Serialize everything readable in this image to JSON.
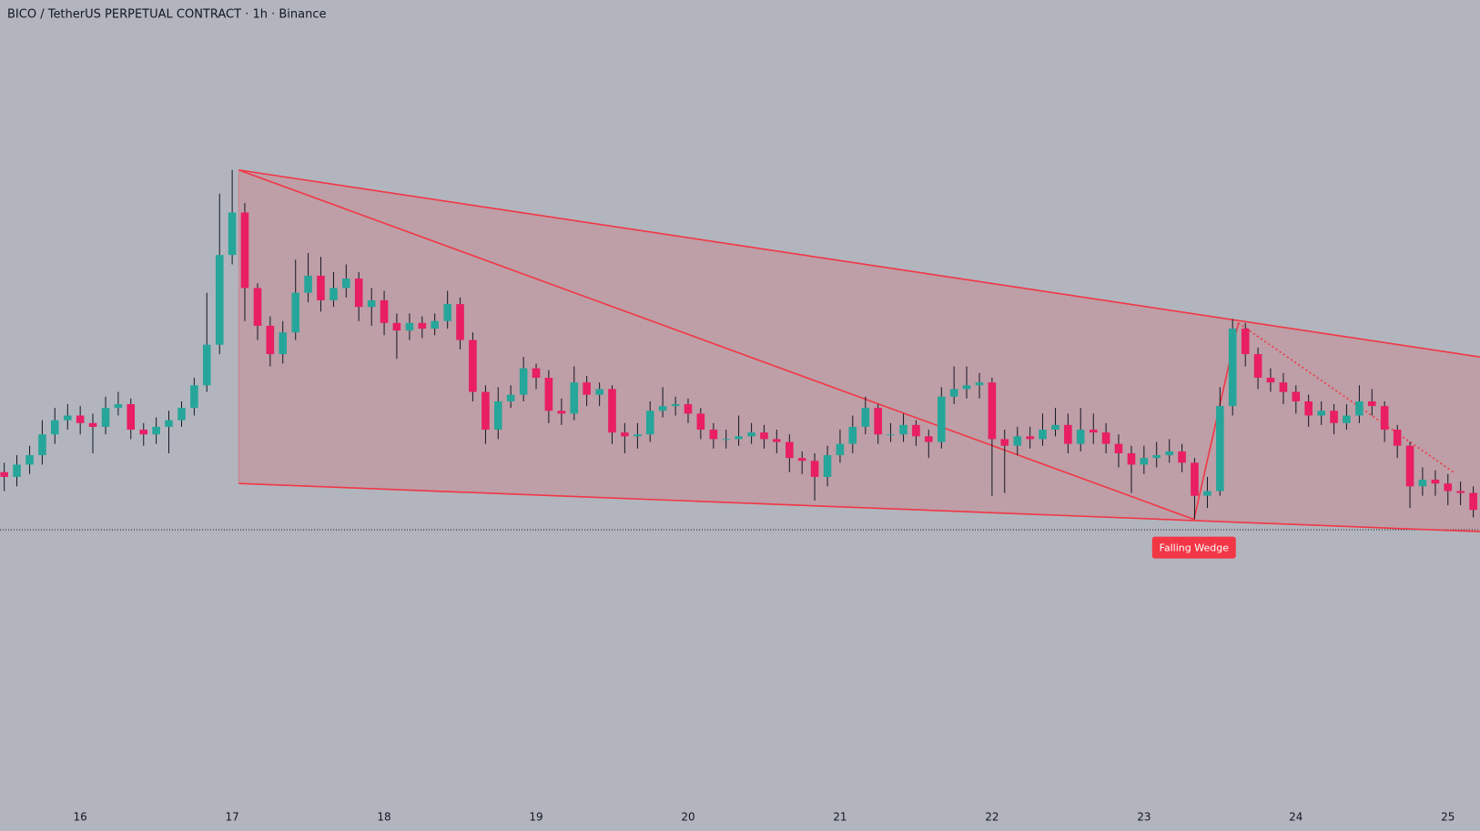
{
  "chart_data": {
    "type": "candlestick",
    "title": "BICO / TetherUS PERPETUAL CONTRACT · 1h · Binance",
    "up_color": "#26a69a",
    "down_color": "#e91e63",
    "background": "#b2b5be",
    "xlim": [
      15.472,
      25.211
    ],
    "ylim": [
      120,
      1000
    ],
    "xticks": [
      16,
      17,
      18,
      19,
      20,
      21,
      22,
      23,
      24,
      25
    ],
    "x": [
      15.5,
      15.583,
      15.667,
      15.75,
      15.833,
      15.917,
      16,
      16.083,
      16.167,
      16.25,
      16.333,
      16.417,
      16.5,
      16.583,
      16.667,
      16.75,
      16.833,
      16.917,
      17,
      17.083,
      17.167,
      17.25,
      17.333,
      17.417,
      17.5,
      17.583,
      17.667,
      17.75,
      17.833,
      17.917,
      18,
      18.083,
      18.167,
      18.25,
      18.333,
      18.417,
      18.5,
      18.583,
      18.667,
      18.75,
      18.833,
      18.917,
      19,
      19.083,
      19.167,
      19.25,
      19.333,
      19.417,
      19.5,
      19.583,
      19.667,
      19.75,
      19.833,
      19.917,
      20,
      20.083,
      20.167,
      20.25,
      20.333,
      20.417,
      20.5,
      20.583,
      20.667,
      20.75,
      20.833,
      20.917,
      21,
      21.083,
      21.167,
      21.25,
      21.333,
      21.417,
      21.5,
      21.583,
      21.667,
      21.75,
      21.833,
      21.917,
      22,
      22.083,
      22.167,
      22.25,
      22.333,
      22.417,
      22.5,
      22.583,
      22.667,
      22.75,
      22.833,
      22.917,
      23,
      23.083,
      23.167,
      23.25,
      23.333,
      23.417,
      23.5,
      23.583,
      23.667,
      23.75,
      23.833,
      23.917,
      24,
      24.083,
      24.167,
      24.25,
      24.333,
      24.417,
      24.5,
      24.583,
      24.667,
      24.75,
      24.833,
      24.917,
      25,
      25.083,
      25.167
    ],
    "open": [
      500,
      495,
      508,
      518,
      540,
      555,
      560,
      552,
      548,
      568,
      572,
      545,
      540,
      548,
      555,
      568,
      592,
      635,
      730,
      775,
      695,
      655,
      625,
      648,
      690,
      708,
      682,
      695,
      705,
      675,
      682,
      658,
      650,
      658,
      652,
      660,
      678,
      640,
      585,
      545,
      575,
      582,
      610,
      600,
      565,
      562,
      595,
      582,
      588,
      542,
      538,
      540,
      565,
      570,
      572,
      562,
      545,
      535,
      535,
      538,
      542,
      535,
      532,
      515,
      512,
      495,
      518,
      530,
      548,
      568,
      540,
      540,
      550,
      538,
      532,
      580,
      588,
      592,
      595,
      535,
      528,
      538,
      535,
      545,
      550,
      530,
      545,
      542,
      530,
      520,
      508,
      515,
      518,
      522,
      510,
      475,
      480,
      570,
      652,
      625,
      600,
      595,
      585,
      575,
      560,
      565,
      552,
      560,
      575,
      570,
      545,
      528,
      485,
      492,
      488,
      480,
      478
    ],
    "high": [
      510,
      518,
      528,
      555,
      568,
      572,
      570,
      562,
      580,
      585,
      578,
      552,
      558,
      565,
      575,
      600,
      690,
      795,
      820,
      785,
      700,
      665,
      660,
      725,
      732,
      728,
      712,
      720,
      712,
      695,
      692,
      668,
      668,
      665,
      668,
      692,
      685,
      648,
      592,
      590,
      592,
      622,
      615,
      608,
      578,
      612,
      602,
      595,
      592,
      552,
      552,
      575,
      590,
      580,
      578,
      568,
      552,
      545,
      560,
      552,
      550,
      545,
      540,
      522,
      520,
      528,
      545,
      560,
      580,
      572,
      552,
      562,
      555,
      545,
      590,
      612,
      612,
      605,
      600,
      545,
      548,
      548,
      562,
      568,
      562,
      568,
      562,
      552,
      540,
      528,
      528,
      532,
      535,
      530,
      515,
      495,
      590,
      662,
      658,
      632,
      610,
      605,
      592,
      582,
      575,
      572,
      572,
      592,
      588,
      575,
      550,
      532,
      505,
      502,
      498,
      490,
      485
    ],
    "low": [
      480,
      485,
      498,
      508,
      530,
      545,
      540,
      520,
      540,
      560,
      535,
      528,
      530,
      520,
      548,
      560,
      585,
      625,
      720,
      660,
      640,
      612,
      615,
      640,
      680,
      670,
      675,
      685,
      660,
      655,
      645,
      620,
      640,
      642,
      645,
      652,
      630,
      575,
      530,
      535,
      568,
      575,
      588,
      552,
      550,
      555,
      570,
      570,
      530,
      520,
      525,
      532,
      558,
      560,
      552,
      535,
      525,
      525,
      528,
      530,
      525,
      520,
      500,
      498,
      470,
      485,
      510,
      520,
      540,
      530,
      532,
      532,
      528,
      515,
      525,
      572,
      578,
      578,
      475,
      478,
      518,
      525,
      528,
      538,
      520,
      522,
      530,
      520,
      505,
      478,
      498,
      505,
      510,
      500,
      450,
      462,
      475,
      560,
      612,
      588,
      585,
      572,
      562,
      548,
      550,
      540,
      545,
      552,
      560,
      532,
      515,
      462,
      475,
      475,
      465,
      465,
      452
    ],
    "close": [
      495,
      508,
      518,
      540,
      555,
      560,
      552,
      548,
      568,
      572,
      545,
      540,
      548,
      555,
      568,
      592,
      635,
      730,
      775,
      695,
      655,
      625,
      648,
      690,
      708,
      682,
      695,
      705,
      675,
      682,
      658,
      650,
      658,
      652,
      660,
      678,
      640,
      585,
      545,
      575,
      582,
      610,
      600,
      565,
      562,
      595,
      582,
      588,
      542,
      538,
      540,
      565,
      570,
      572,
      562,
      545,
      535,
      535,
      538,
      542,
      535,
      532,
      515,
      512,
      495,
      518,
      530,
      548,
      568,
      540,
      540,
      550,
      538,
      532,
      580,
      588,
      592,
      595,
      535,
      528,
      538,
      535,
      545,
      550,
      530,
      545,
      542,
      530,
      520,
      508,
      515,
      518,
      522,
      510,
      475,
      480,
      570,
      652,
      625,
      600,
      595,
      585,
      575,
      560,
      565,
      552,
      560,
      575,
      570,
      545,
      528,
      485,
      492,
      488,
      480,
      478,
      460
    ],
    "price_line": 439,
    "pattern": {
      "label": "Falling Wedge",
      "color": "#f23645",
      "upper": [
        [
          17.043,
          820
        ],
        [
          25.211,
          622
        ]
      ],
      "lower": [
        [
          17.043,
          488
        ],
        [
          25.211,
          437
        ]
      ],
      "diagonal": [
        [
          17.043,
          820
        ],
        [
          23.329,
          450
        ]
      ],
      "leg": [
        [
          23.329,
          450
        ],
        [
          23.621,
          658
        ]
      ],
      "projection": [
        [
          23.621,
          658
        ],
        [
          25.037,
          500
        ]
      ]
    }
  }
}
